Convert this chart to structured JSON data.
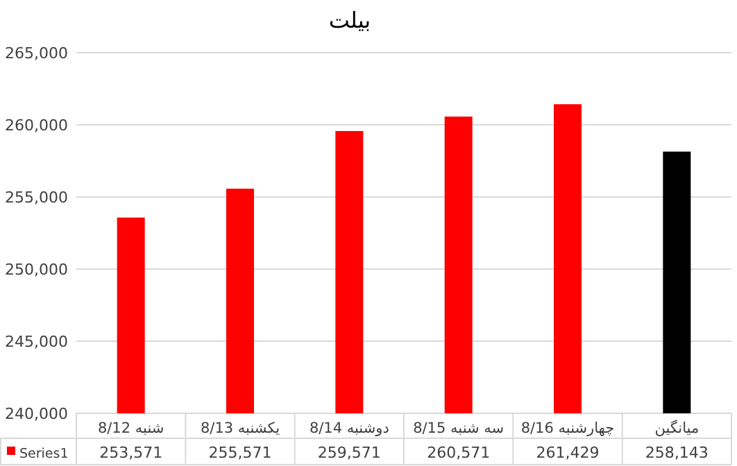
{
  "chart_data": {
    "type": "bar",
    "title": "بیلت",
    "categories": [
      "شنبه 8/12",
      "یکشنبه 8/13",
      "دوشنبه 8/14",
      "سه شنبه 8/15",
      "چهارشنبه 8/16",
      "میانگین"
    ],
    "series": [
      {
        "name": "Series1",
        "color": "#ff0000",
        "colors": [
          "#ff0000",
          "#ff0000",
          "#ff0000",
          "#ff0000",
          "#ff0000",
          "#000000"
        ],
        "values": [
          253571,
          255571,
          259571,
          260571,
          261429,
          258143
        ],
        "value_labels": [
          "253,571",
          "255,571",
          "259,571",
          "260,571",
          "261,429",
          "258,143"
        ]
      }
    ],
    "ylim": [
      240000,
      265000
    ],
    "yticks": [
      {
        "value": 240000,
        "label": "240,000"
      },
      {
        "value": 245000,
        "label": "245,000"
      },
      {
        "value": 250000,
        "label": "250,000"
      },
      {
        "value": 255000,
        "label": "255,000"
      },
      {
        "value": 260000,
        "label": "260,000"
      },
      {
        "value": 265000,
        "label": "265,000"
      }
    ],
    "grid": "y",
    "legend": "bottom left"
  }
}
